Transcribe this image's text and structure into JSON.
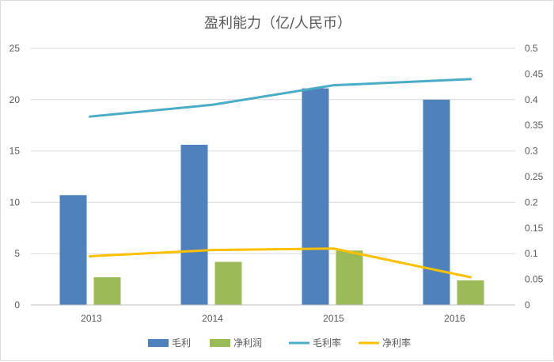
{
  "chart_data": {
    "type": "bar",
    "title": "盈利能力（亿/人民币）",
    "categories": [
      "2013",
      "2014",
      "2015",
      "2016"
    ],
    "y_left": {
      "min": 0,
      "max": 25,
      "ticks": [
        "0",
        "5",
        "10",
        "15",
        "20",
        "25"
      ]
    },
    "y_right": {
      "min": 0,
      "max": 0.5,
      "ticks": [
        "0",
        "0.05",
        "0.1",
        "0.15",
        "0.2",
        "0.25",
        "0.3",
        "0.35",
        "0.4",
        "0.45",
        "0.5"
      ]
    },
    "grid": true,
    "legend_position": "bottom",
    "series": [
      {
        "name": "毛利",
        "type": "bar",
        "axis": "left",
        "color": "#4F81BD",
        "values": [
          10.7,
          15.6,
          21.1,
          20.0
        ]
      },
      {
        "name": "净利润",
        "type": "bar",
        "axis": "left",
        "color": "#9BBB59",
        "values": [
          2.7,
          4.2,
          5.3,
          2.4
        ]
      },
      {
        "name": "毛利率",
        "type": "line",
        "axis": "right",
        "color": "#4BACC6",
        "values": [
          0.367,
          0.39,
          0.428,
          0.44
        ]
      },
      {
        "name": "净利率",
        "type": "line",
        "axis": "right",
        "color": "#FFC000",
        "values": [
          0.095,
          0.107,
          0.11,
          0.054
        ]
      }
    ]
  }
}
